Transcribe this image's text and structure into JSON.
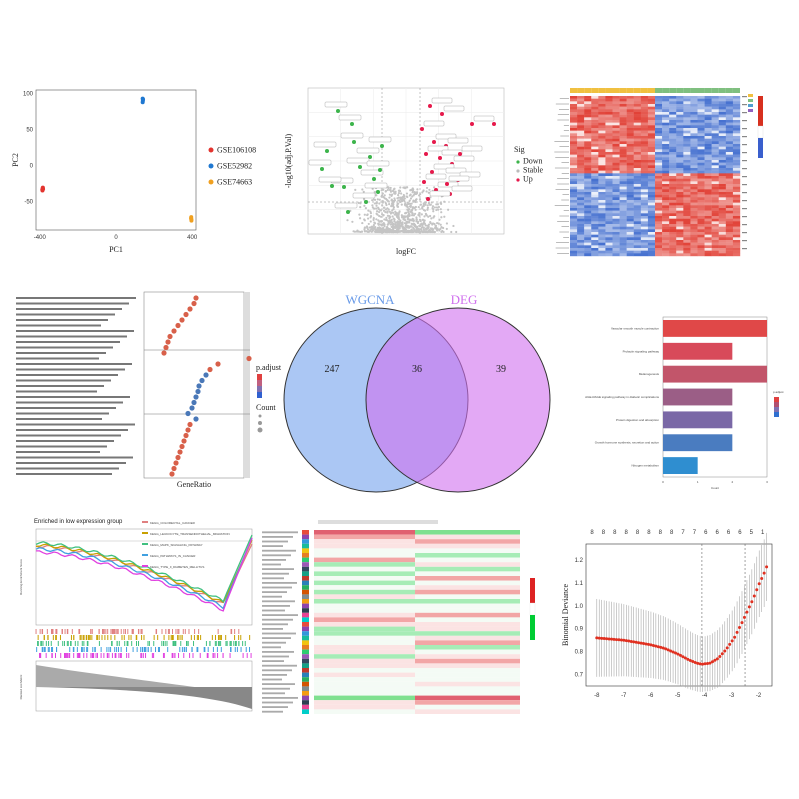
{
  "chart_data": [
    {
      "type": "scatter",
      "panel": "pca",
      "xlabel": "PC1",
      "ylabel": "PC2",
      "xticks": [
        "-400",
        "0",
        "400"
      ],
      "yticks": [
        "100",
        "50",
        "0",
        "-50"
      ],
      "xlim": [
        -420,
        420
      ],
      "ylim": [
        -90,
        105
      ],
      "series": [
        {
          "name": "GSE106108",
          "color": "#e3342f",
          "points": [
            [
              -385,
              -32
            ],
            [
              -387,
              -34
            ],
            [
              -383,
              -33
            ],
            [
              -386,
              -35
            ],
            [
              -384,
              -31
            ]
          ]
        },
        {
          "name": "GSE52982",
          "color": "#1f78d1",
          "points": [
            [
              140,
              93
            ],
            [
              141,
              90
            ],
            [
              140,
              88
            ],
            [
              142,
              92
            ]
          ]
        },
        {
          "name": "GSE74663",
          "color": "#f0a020",
          "points": [
            [
              395,
              -72
            ],
            [
              396,
              -75
            ],
            [
              394,
              -74
            ],
            [
              396,
              -77
            ]
          ]
        }
      ]
    },
    {
      "type": "scatter",
      "panel": "volcano",
      "xlabel": "logFC",
      "ylabel": "-log10(adj.P.Val)",
      "legend_title": "Sig",
      "series": [
        {
          "name": "Down",
          "color": "#3cb44b"
        },
        {
          "name": "Stable",
          "color": "#bbbbbb"
        },
        {
          "name": "Up",
          "color": "#e6194b"
        }
      ]
    },
    {
      "type": "heatmap",
      "panel": "heatmap",
      "colors": {
        "low": "#3a5fcd",
        "mid": "#ffffff",
        "high": "#d7301f"
      }
    },
    {
      "type": "scatter",
      "panel": "go-dotplot",
      "legend_title": "p.adjust",
      "legend2_title": "Count",
      "xlabel": "GeneRatio"
    },
    {
      "type": "venn",
      "panel": "venn",
      "sets": [
        {
          "name": "WGCNA",
          "color": "#8fb4f0",
          "label_color": "#6a9be8"
        },
        {
          "name": "DEG",
          "color": "#d070ee",
          "label_color": "#d070ee"
        }
      ],
      "values": {
        "left_only": "247",
        "overlap": "36",
        "right_only": "39"
      }
    },
    {
      "type": "bar",
      "panel": "kegg-bar",
      "xlabel": "Count",
      "legend_title": "p.adjust",
      "categories": [
        "Vascular smooth muscle contraction",
        "Prolactin signaling pathway",
        "Melanogenesis",
        "AGE-RAGE signaling pathway in diabetic complications",
        "Protein digestion and absorption",
        "Growth hormone synthesis, secretion and action",
        "Nitrogen metabolism"
      ],
      "values": [
        3,
        2,
        3,
        2,
        2,
        2,
        1
      ],
      "xlim": [
        0,
        3
      ],
      "xticks": [
        "0",
        "1",
        "2",
        "3"
      ]
    },
    {
      "type": "line",
      "panel": "gsea",
      "title": "Enriched in low expression group",
      "ylabel": "Running Enrichment Score",
      "ylabel2": "Ranked List Metric",
      "series": [
        {
          "name": "KEGG_COLORECTAL_CANCER",
          "color": "#e08080"
        },
        {
          "name": "KEGG_LEUKOCYTE_TRANSENDOTHELIAL_MIGRATION",
          "color": "#c8a000"
        },
        {
          "name": "KEGG_MAPK_SIGNALING_PATHWAY",
          "color": "#40c080"
        },
        {
          "name": "KEGG_PATHWAYS_IN_CANCER",
          "color": "#40a0e0"
        },
        {
          "name": "KEGG_TYPE_II_DIABETES_MELLITUS",
          "color": "#e040e0"
        }
      ]
    },
    {
      "type": "heatmap",
      "panel": "immune-heatmap",
      "colors": {
        "low": "#00cc33",
        "mid": "#ffffff",
        "high": "#dd2222"
      }
    },
    {
      "type": "line",
      "panel": "lasso-cv",
      "ylabel": "Binomial Deviance",
      "top_ticks": [
        "8",
        "8",
        "8",
        "8",
        "8",
        "8",
        "8",
        "8",
        "7",
        "7",
        "6",
        "6",
        "6",
        "6",
        "5",
        "1"
      ],
      "xticks": [
        "-8",
        "-7",
        "-6",
        "-5",
        "-4",
        "-3",
        "-2"
      ],
      "yticks": [
        "0.7",
        "0.8",
        "0.9",
        "1.0",
        "1.1",
        "1.2"
      ],
      "xlim": [
        -8.4,
        -1.5
      ],
      "ylim": [
        0.65,
        1.27
      ],
      "vlines": [
        -4.1,
        -2.5
      ],
      "x": [
        -8.0,
        -7.5,
        -7.0,
        -6.5,
        -6.0,
        -5.5,
        -5.0,
        -4.6,
        -4.3,
        -4.1,
        -3.8,
        -3.5,
        -3.2,
        -2.9,
        -2.6,
        -2.4,
        -2.2,
        -2.0,
        -1.8,
        -1.7
      ],
      "y": [
        0.86,
        0.855,
        0.85,
        0.84,
        0.83,
        0.815,
        0.79,
        0.765,
        0.75,
        0.745,
        0.75,
        0.77,
        0.81,
        0.86,
        0.93,
        0.98,
        1.03,
        1.09,
        1.14,
        1.17
      ]
    }
  ]
}
